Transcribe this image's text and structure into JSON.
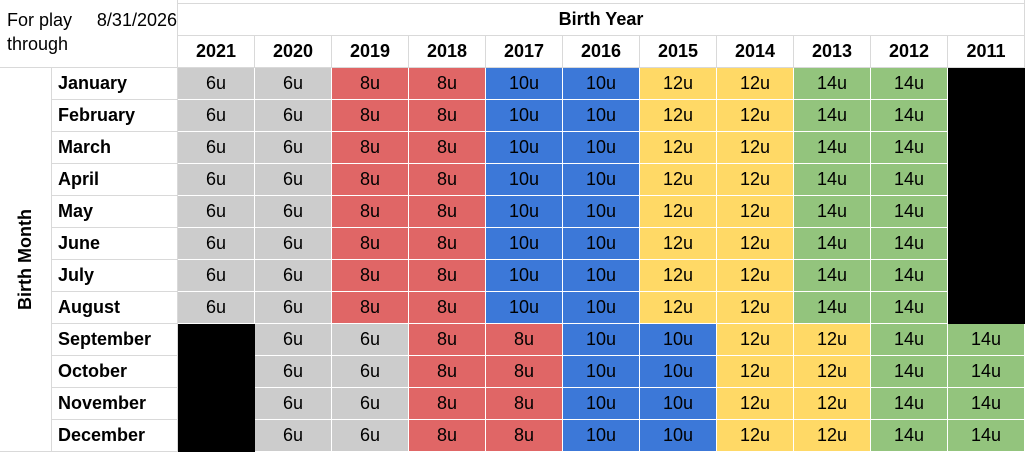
{
  "sheet": {
    "title_line1": "For play through",
    "title_line2": "8/31/2026",
    "birth_year_label": "Birth Year",
    "birth_month_label": "Birth Month",
    "years": [
      "2021",
      "2020",
      "2019",
      "2018",
      "2017",
      "2016",
      "2015",
      "2014",
      "2013",
      "2012",
      "2011"
    ],
    "months": [
      "January",
      "February",
      "March",
      "April",
      "May",
      "June",
      "July",
      "August",
      "September",
      "October",
      "November",
      "December"
    ],
    "colors": {
      "6u": "#cccccc",
      "8u": "#e06666",
      "10u": "#3c78d8",
      "12u": "#ffd966",
      "14u": "#93c47d",
      "none": "#000000"
    },
    "rows": [
      [
        "6u",
        "6u",
        "8u",
        "8u",
        "10u",
        "10u",
        "12u",
        "12u",
        "14u",
        "14u",
        ""
      ],
      [
        "6u",
        "6u",
        "8u",
        "8u",
        "10u",
        "10u",
        "12u",
        "12u",
        "14u",
        "14u",
        ""
      ],
      [
        "6u",
        "6u",
        "8u",
        "8u",
        "10u",
        "10u",
        "12u",
        "12u",
        "14u",
        "14u",
        ""
      ],
      [
        "6u",
        "6u",
        "8u",
        "8u",
        "10u",
        "10u",
        "12u",
        "12u",
        "14u",
        "14u",
        ""
      ],
      [
        "6u",
        "6u",
        "8u",
        "8u",
        "10u",
        "10u",
        "12u",
        "12u",
        "14u",
        "14u",
        ""
      ],
      [
        "6u",
        "6u",
        "8u",
        "8u",
        "10u",
        "10u",
        "12u",
        "12u",
        "14u",
        "14u",
        ""
      ],
      [
        "6u",
        "6u",
        "8u",
        "8u",
        "10u",
        "10u",
        "12u",
        "12u",
        "14u",
        "14u",
        ""
      ],
      [
        "6u",
        "6u",
        "8u",
        "8u",
        "10u",
        "10u",
        "12u",
        "12u",
        "14u",
        "14u",
        ""
      ],
      [
        "",
        "6u",
        "6u",
        "8u",
        "8u",
        "10u",
        "10u",
        "12u",
        "12u",
        "14u",
        "14u"
      ],
      [
        "",
        "6u",
        "6u",
        "8u",
        "8u",
        "10u",
        "10u",
        "12u",
        "12u",
        "14u",
        "14u"
      ],
      [
        "",
        "6u",
        "6u",
        "8u",
        "8u",
        "10u",
        "10u",
        "12u",
        "12u",
        "14u",
        "14u"
      ],
      [
        "",
        "6u",
        "6u",
        "8u",
        "8u",
        "10u",
        "10u",
        "12u",
        "12u",
        "14u",
        "14u"
      ]
    ]
  }
}
